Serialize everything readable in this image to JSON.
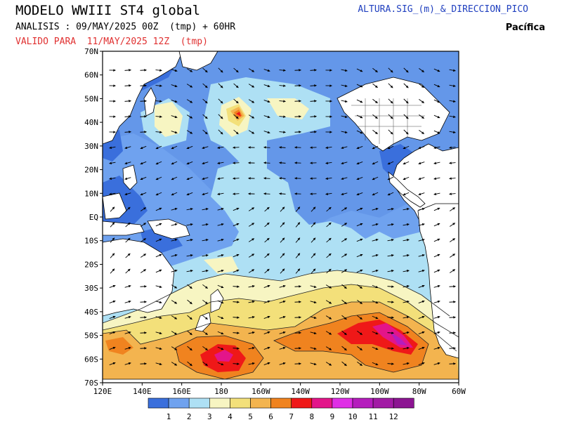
{
  "header": {
    "title": "MODELO WWIII ST4 global",
    "analysis": "ANALISIS : 09/MAY/2025 00Z  (tmp) + 60HR",
    "valid": "VALIDO PARA  11/MAY/2025 12Z  (tmp)",
    "variable": "ALTURA.SIG_(m)_&_DIRECCION_PICO",
    "region": "Pacífica",
    "valid_color": "#e03030",
    "variable_color": "#1f3fbf"
  },
  "map": {
    "lat_labels": [
      "70N",
      "60N",
      "50N",
      "40N",
      "30N",
      "20N",
      "10N",
      "EQ",
      "10S",
      "20S",
      "30S",
      "40S",
      "50S",
      "60S",
      "70S"
    ],
    "lon_labels": [
      "120E",
      "140E",
      "160E",
      "180",
      "160W",
      "140W",
      "120W",
      "100W",
      "80W",
      "60W"
    ],
    "lon_range": [
      120,
      300
    ],
    "lat_range": [
      -70,
      70
    ]
  },
  "legend": {
    "values": [
      "1",
      "2",
      "3",
      "4",
      "5",
      "6",
      "7",
      "8",
      "9",
      "10",
      "11",
      "12"
    ],
    "colors": [
      "#3a6fdc",
      "#6fa2ef",
      "#aee0f4",
      "#f7f5c2",
      "#f3e07a",
      "#f3b44f",
      "#f0831f",
      "#ef1818",
      "#e3158a",
      "#df2fe6",
      "#b51dbd",
      "#a21ba5",
      "#8c1592"
    ]
  }
}
